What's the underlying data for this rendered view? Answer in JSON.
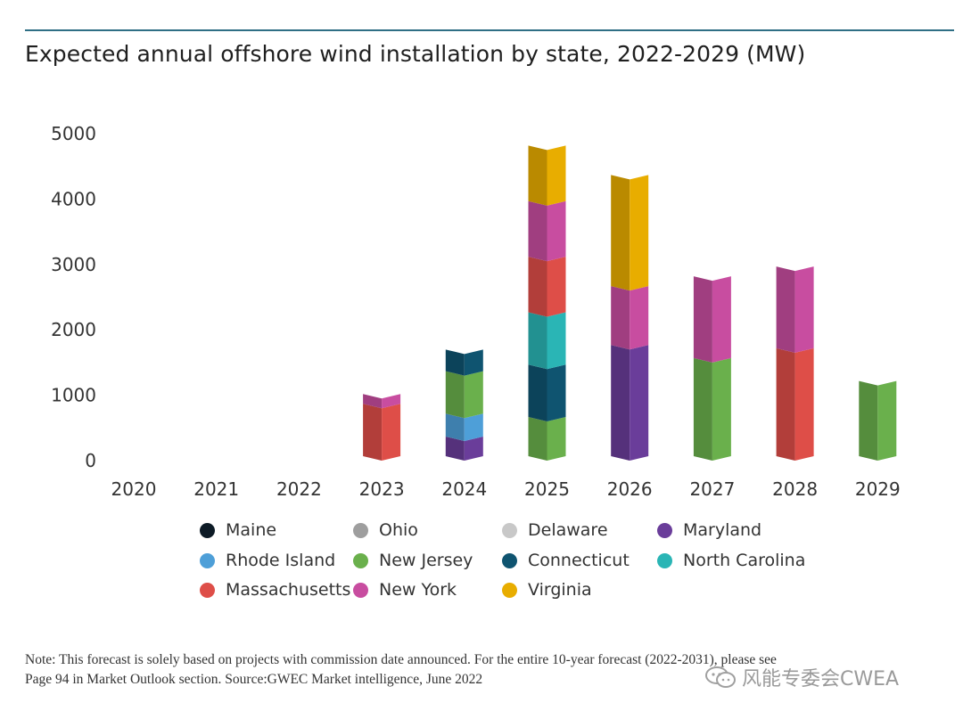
{
  "chart_data": {
    "type": "bar",
    "stacked": true,
    "title": "Expected annual offshore wind installation by state, 2022-2029 (MW)",
    "categories": [
      "2020",
      "2021",
      "2022",
      "2023",
      "2024",
      "2025",
      "2026",
      "2027",
      "2028",
      "2029"
    ],
    "y_ticks": [
      "5000",
      "4000",
      "3000",
      "2000",
      "1000",
      "0"
    ],
    "ylim": [
      0,
      5000
    ],
    "series": [
      {
        "name": "Maine",
        "color": "#0d1b26",
        "values": [
          0,
          0,
          0,
          0,
          0,
          0,
          0,
          0,
          0,
          0
        ]
      },
      {
        "name": "Ohio",
        "color": "#9e9e9e",
        "values": [
          0,
          0,
          0,
          0,
          0,
          0,
          0,
          0,
          0,
          0
        ]
      },
      {
        "name": "Delaware",
        "color": "#c8c8c8",
        "values": [
          0,
          0,
          0,
          0,
          0,
          0,
          0,
          0,
          0,
          0
        ]
      },
      {
        "name": "Maryland",
        "color": "#6a3d9a",
        "values": [
          0,
          0,
          0,
          0,
          300,
          0,
          1700,
          0,
          0,
          0
        ]
      },
      {
        "name": "Rhode Island",
        "color": "#4e9fd8",
        "values": [
          0,
          0,
          0,
          0,
          350,
          0,
          0,
          0,
          0,
          0
        ]
      },
      {
        "name": "New Jersey",
        "color": "#6ab04c",
        "values": [
          0,
          0,
          0,
          0,
          650,
          600,
          0,
          1500,
          0,
          1150
        ]
      },
      {
        "name": "Connecticut",
        "color": "#0f5470",
        "values": [
          0,
          0,
          0,
          0,
          330,
          800,
          0,
          0,
          0,
          0
        ]
      },
      {
        "name": "North Carolina",
        "color": "#2ab5b5",
        "values": [
          0,
          0,
          0,
          0,
          0,
          800,
          0,
          0,
          0,
          0
        ]
      },
      {
        "name": "Massachusetts",
        "color": "#de4e48",
        "values": [
          0,
          0,
          0,
          800,
          0,
          850,
          0,
          0,
          1650,
          0
        ]
      },
      {
        "name": "New York",
        "color": "#c84da0",
        "values": [
          0,
          0,
          0,
          150,
          0,
          850,
          900,
          1250,
          1250,
          0
        ]
      },
      {
        "name": "Virginia",
        "color": "#e8ad00",
        "values": [
          0,
          0,
          0,
          0,
          0,
          850,
          1700,
          0,
          0,
          0
        ]
      }
    ]
  },
  "legend": [
    {
      "label": "Maine",
      "color": "#0d1b26"
    },
    {
      "label": "Ohio",
      "color": "#9e9e9e"
    },
    {
      "label": "Delaware",
      "color": "#c8c8c8"
    },
    {
      "label": "Maryland",
      "color": "#6a3d9a"
    },
    {
      "label": "Rhode Island",
      "color": "#4e9fd8"
    },
    {
      "label": "New Jersey",
      "color": "#6ab04c"
    },
    {
      "label": "Connecticut",
      "color": "#0f5470"
    },
    {
      "label": "North Carolina",
      "color": "#2ab5b5"
    },
    {
      "label": "Massachusetts",
      "color": "#de4e48"
    },
    {
      "label": "New York",
      "color": "#c84da0"
    },
    {
      "label": "Virginia",
      "color": "#e8ad00"
    }
  ],
  "note": {
    "line1": "Note: This forecast is solely based on projects with commission date announced. For the entire 10-year forecast (2022-2031), please see",
    "line2": "Page 94 in Market Outlook section. Source:GWEC Market intelligence, June 2022"
  },
  "watermark": "风能专委会CWEA"
}
